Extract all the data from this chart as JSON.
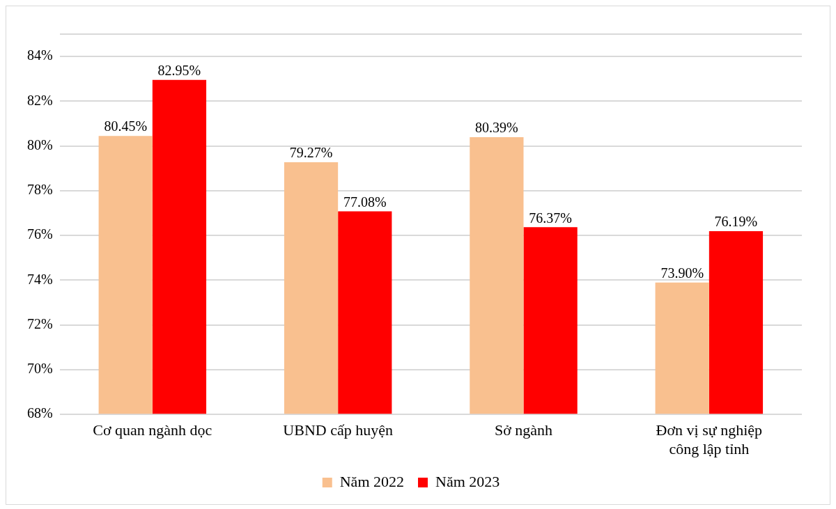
{
  "chart_data": {
    "type": "bar",
    "categories": [
      "Cơ quan ngành dọc",
      "UBND cấp huyện",
      "Sở ngành",
      "Đơn vị sự nghiệp công lập tỉnh"
    ],
    "series": [
      {
        "name": "Năm 2022",
        "color": "#f9c08f",
        "values": [
          80.45,
          79.27,
          80.39,
          73.9
        ],
        "value_labels": [
          "80.45%",
          "79.27%",
          "80.39%",
          "73.90%"
        ]
      },
      {
        "name": "Năm 2023",
        "color": "#ff0000",
        "values": [
          82.95,
          77.08,
          76.37,
          76.19
        ],
        "value_labels": [
          "82.95%",
          "77.08%",
          "76.37%",
          "76.19%"
        ]
      }
    ],
    "ylim": [
      68,
      85
    ],
    "yticks": [
      {
        "value": 68,
        "label": "68%"
      },
      {
        "value": 70,
        "label": "70%"
      },
      {
        "value": 72,
        "label": "72%"
      },
      {
        "value": 74,
        "label": "74%"
      },
      {
        "value": 76,
        "label": "76%"
      },
      {
        "value": 78,
        "label": "78%"
      },
      {
        "value": 80,
        "label": "80%"
      },
      {
        "value": 82,
        "label": "82%"
      },
      {
        "value": 84,
        "label": "84%"
      },
      {
        "value": 85,
        "label": null
      }
    ],
    "grid": "y",
    "legend": "bottom"
  }
}
